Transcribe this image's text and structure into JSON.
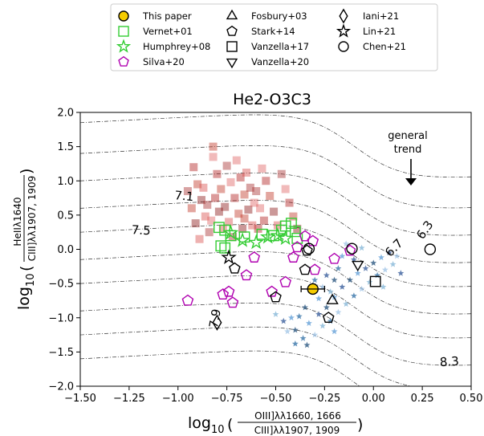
{
  "chart_data": {
    "type": "scatter",
    "title": "He2-O3C3",
    "xlabel": {
      "prefix": "log",
      "sub": "10",
      "num": "OIII]λλ1660, 1666",
      "den": "CIII]λλ1907, 1909"
    },
    "ylabel": {
      "prefix": "log",
      "sub": "10",
      "num": "HeIIλ1640",
      "den": "CIII]λλ1907, 1909"
    },
    "xlim": [
      -1.5,
      0.5
    ],
    "ylim": [
      -2.0,
      2.0
    ],
    "xticks": [
      -1.5,
      -1.25,
      -1.0,
      -0.75,
      -0.5,
      -0.25,
      0.0,
      0.25,
      0.5
    ],
    "xtick_labels": [
      "−1.50",
      "−1.25",
      "−1.00",
      "−0.75",
      "−0.50",
      "−0.25",
      "0.00",
      "0.25",
      "0.50"
    ],
    "yticks": [
      -2.0,
      -1.5,
      -1.0,
      -0.5,
      0.0,
      0.5,
      1.0,
      1.5,
      2.0
    ],
    "ytick_labels": [
      "−2.0",
      "−1.5",
      "−1.0",
      "−0.5",
      "0.0",
      "0.5",
      "1.0",
      "1.5",
      "2.0"
    ],
    "annotation": {
      "text": [
        "general",
        "trend"
      ]
    },
    "contour_labels": [
      "7.1",
      "7.5",
      "7.9",
      "6.3",
      "6.7",
      "8.3"
    ],
    "legend": [
      {
        "label": "This paper",
        "marker": "circle",
        "color": "#000000",
        "fill": "#f5cc00"
      },
      {
        "label": "Vernet+01",
        "marker": "square",
        "color": "#33cc33",
        "fill": "none"
      },
      {
        "label": "Humphrey+08",
        "marker": "star",
        "color": "#33cc33",
        "fill": "none"
      },
      {
        "label": "Silva+20",
        "marker": "pentagon",
        "color": "#b000b0",
        "fill": "none"
      },
      {
        "label": "Fosbury+03",
        "marker": "triangle-up",
        "color": "#000000",
        "fill": "none"
      },
      {
        "label": "Stark+14",
        "marker": "pentagon",
        "color": "#000000",
        "fill": "none"
      },
      {
        "label": "Vanzella+17",
        "marker": "square",
        "color": "#000000",
        "fill": "none"
      },
      {
        "label": "Vanzella+20",
        "marker": "triangle-down",
        "color": "#000000",
        "fill": "none"
      },
      {
        "label": "Iani+21",
        "marker": "diamond",
        "color": "#000000",
        "fill": "none"
      },
      {
        "label": "Lin+21",
        "marker": "star",
        "color": "#000000",
        "fill": "none"
      },
      {
        "label": "Chen+21",
        "marker": "circle",
        "color": "#000000",
        "fill": "none"
      }
    ],
    "series": [
      {
        "label": "This paper",
        "points": [
          [
            -0.31,
            -0.58
          ]
        ],
        "xerr": 0.06,
        "yerr": 0.04
      },
      {
        "label": "Vernet+01",
        "points": [
          [
            -0.79,
            0.32
          ],
          [
            -0.76,
            0.28
          ],
          [
            -0.73,
            0.2
          ],
          [
            -0.66,
            0.18
          ],
          [
            -0.57,
            0.22
          ],
          [
            -0.51,
            0.2
          ],
          [
            -0.47,
            0.28
          ],
          [
            -0.45,
            0.34
          ],
          [
            -0.42,
            0.38
          ],
          [
            -0.4,
            0.26
          ],
          [
            -0.39,
            0.16
          ],
          [
            -0.78,
            0.05
          ],
          [
            -0.76,
            0.02
          ]
        ]
      },
      {
        "label": "Humphrey+08",
        "points": [
          [
            -0.73,
            0.24
          ],
          [
            -0.67,
            0.13
          ],
          [
            -0.6,
            0.1
          ],
          [
            -0.54,
            0.18
          ],
          [
            -0.49,
            0.2
          ],
          [
            -0.45,
            0.16
          ]
        ]
      },
      {
        "label": "Silva+20",
        "points": [
          [
            -0.95,
            -0.75
          ],
          [
            -0.77,
            -0.66
          ],
          [
            -0.74,
            -0.62
          ],
          [
            -0.72,
            -0.78
          ],
          [
            -0.65,
            -0.38
          ],
          [
            -0.61,
            -0.12
          ],
          [
            -0.52,
            -0.62
          ],
          [
            -0.45,
            -0.48
          ],
          [
            -0.41,
            -0.12
          ],
          [
            -0.39,
            0.03
          ],
          [
            -0.35,
            0.19
          ],
          [
            -0.31,
            0.12
          ],
          [
            -0.2,
            -0.14
          ],
          [
            -0.12,
            -0.02
          ],
          [
            -0.3,
            -0.3
          ]
        ]
      },
      {
        "label": "Fosbury+03",
        "points": [
          [
            -0.21,
            -0.75
          ]
        ]
      },
      {
        "label": "Stark+14",
        "points": [
          [
            -0.71,
            -0.28
          ],
          [
            -0.35,
            -0.3
          ],
          [
            -0.34,
            -0.02
          ],
          [
            -0.23,
            -1.0
          ],
          [
            -0.5,
            -0.7
          ]
        ]
      },
      {
        "label": "Vanzella+17",
        "points": [
          [
            0.01,
            -0.47
          ]
        ]
      },
      {
        "label": "Vanzella+20",
        "points": [
          [
            -0.08,
            -0.22
          ]
        ]
      },
      {
        "label": "Iani+21",
        "points": [
          [
            -0.8,
            -1.07
          ]
        ]
      },
      {
        "label": "Lin+21",
        "points": [
          [
            -0.74,
            -0.12
          ]
        ]
      },
      {
        "label": "Chen+21",
        "points": [
          [
            -0.33,
            0.01
          ],
          [
            -0.11,
            0.01
          ],
          [
            0.29,
            0.0
          ]
        ]
      }
    ],
    "model_grid_red": [
      [
        -0.92,
        1.2
      ],
      [
        -0.9,
        0.95
      ],
      [
        -0.88,
        0.72
      ],
      [
        -0.86,
        0.48
      ],
      [
        -0.84,
        0.25
      ],
      [
        -0.82,
        1.35
      ],
      [
        -0.8,
        1.1
      ],
      [
        -0.78,
        0.88
      ],
      [
        -0.76,
        0.62
      ],
      [
        -0.74,
        0.4
      ],
      [
        -0.72,
        0.18
      ],
      [
        -0.7,
        1.3
      ],
      [
        -0.68,
        1.05
      ],
      [
        -0.66,
        0.8
      ],
      [
        -0.64,
        0.58
      ],
      [
        -0.62,
        0.35
      ],
      [
        -0.6,
        0.85
      ],
      [
        -0.58,
        0.6
      ],
      [
        -0.56,
        0.42
      ],
      [
        -0.82,
        1.5
      ],
      [
        -0.79,
        0.55
      ],
      [
        -0.77,
        0.3
      ],
      [
        -0.75,
        1.22
      ],
      [
        -0.73,
        0.98
      ],
      [
        -0.71,
        0.75
      ],
      [
        -0.69,
        0.52
      ],
      [
        -0.67,
        0.3
      ],
      [
        -0.65,
        1.12
      ],
      [
        -0.63,
        0.9
      ],
      [
        -0.61,
        0.68
      ],
      [
        -0.55,
        1.0
      ],
      [
        -0.53,
        0.78
      ],
      [
        -0.51,
        0.55
      ],
      [
        -0.49,
        0.35
      ],
      [
        -0.47,
        1.1
      ],
      [
        -0.45,
        0.88
      ],
      [
        -0.43,
        0.68
      ],
      [
        -0.41,
        0.48
      ],
      [
        -0.39,
        0.3
      ],
      [
        -0.87,
        0.9
      ],
      [
        -0.85,
        0.65
      ],
      [
        -0.83,
        0.42
      ],
      [
        -0.81,
        0.75
      ],
      [
        -0.93,
        0.6
      ],
      [
        -0.91,
        0.38
      ],
      [
        -0.89,
        0.15
      ],
      [
        -0.95,
        0.85
      ],
      [
        -0.57,
        1.18
      ],
      [
        -0.59,
        0.3
      ],
      [
        -0.66,
        0.45
      ]
    ],
    "model_grid_blue": [
      [
        -0.4,
        -1.18
      ],
      [
        -0.36,
        -1.3
      ],
      [
        -0.33,
        -1.08
      ],
      [
        -0.3,
        -1.25
      ],
      [
        -0.28,
        -0.95
      ],
      [
        -0.26,
        -1.12
      ],
      [
        -0.24,
        -0.85
      ],
      [
        -0.22,
        -1.05
      ],
      [
        -0.2,
        -0.7
      ],
      [
        -0.18,
        -0.92
      ],
      [
        -0.16,
        -0.55
      ],
      [
        -0.14,
        -0.8
      ],
      [
        -0.12,
        -0.45
      ],
      [
        -0.1,
        -0.68
      ],
      [
        -0.08,
        -0.35
      ],
      [
        -0.06,
        -0.58
      ],
      [
        -0.04,
        -0.28
      ],
      [
        -0.02,
        -0.48
      ],
      [
        0.0,
        -0.2
      ],
      [
        0.02,
        -0.38
      ],
      [
        0.04,
        -0.12
      ],
      [
        0.06,
        -0.3
      ],
      [
        0.08,
        -0.05
      ],
      [
        0.1,
        -0.22
      ],
      [
        -0.32,
        -0.6
      ],
      [
        -0.3,
        -0.45
      ],
      [
        -0.28,
        -0.72
      ],
      [
        -0.26,
        -0.55
      ],
      [
        -0.24,
        -0.38
      ],
      [
        -0.22,
        -0.62
      ],
      [
        -0.2,
        -0.45
      ],
      [
        -0.18,
        -0.28
      ],
      [
        -0.16,
        -0.1
      ],
      [
        -0.14,
        0.08
      ],
      [
        -0.1,
        -0.15
      ],
      [
        -0.06,
        0.02
      ],
      [
        -0.35,
        -0.85
      ],
      [
        -0.38,
        -0.98
      ],
      [
        -0.42,
        -1.0
      ],
      [
        -0.44,
        -1.2
      ],
      [
        -0.46,
        -1.05
      ],
      [
        -0.5,
        -0.95
      ],
      [
        -0.34,
        -1.4
      ],
      [
        -0.4,
        -1.38
      ],
      [
        -0.2,
        -1.2
      ],
      [
        0.12,
        -0.1
      ],
      [
        0.14,
        -0.35
      ],
      [
        0.05,
        -0.55
      ]
    ],
    "contour_levels": [
      "6.3",
      "6.7",
      "7.1",
      "7.5",
      "7.9",
      "8.3"
    ]
  }
}
